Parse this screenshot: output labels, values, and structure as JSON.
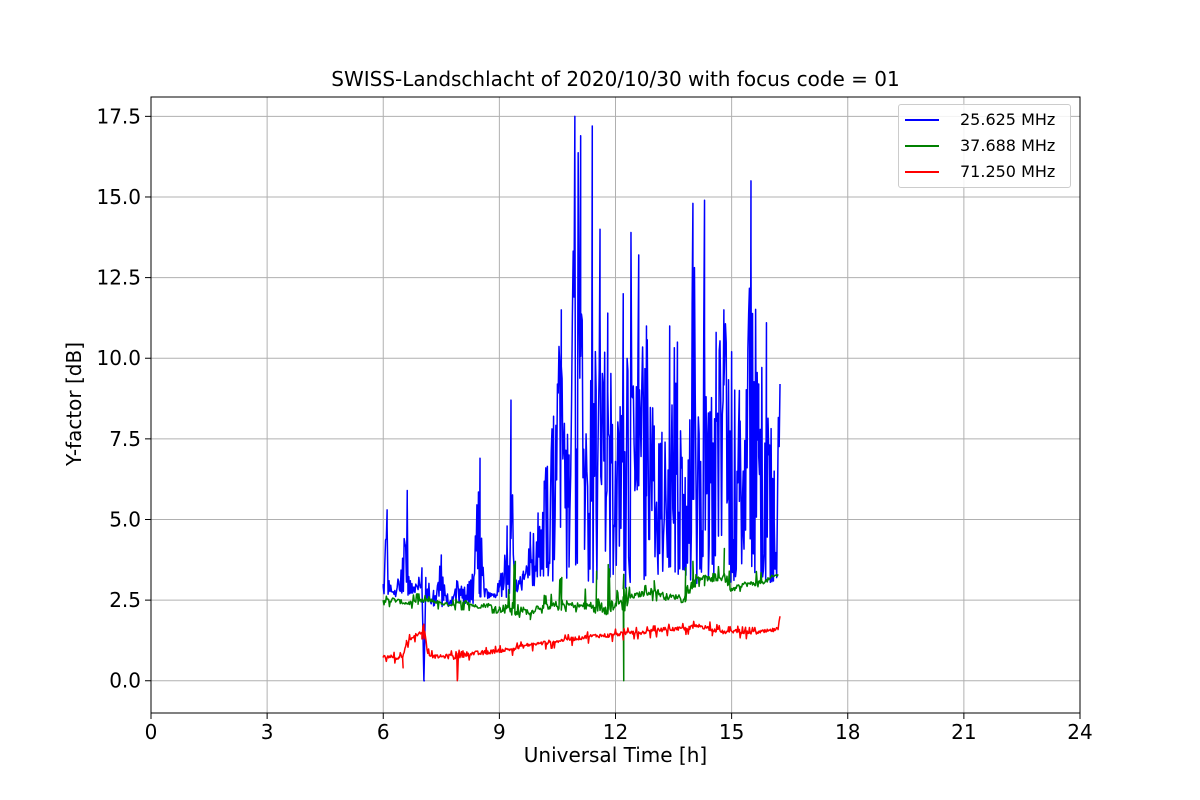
{
  "chart_data": {
    "type": "line",
    "title": "SWISS-Landschlacht of 2020/10/30 with focus code = 01",
    "xlabel": "Universal Time [h]",
    "ylabel": "Y-factor [dB]",
    "xlim": [
      0,
      24
    ],
    "ylim": [
      -1.0,
      18.1
    ],
    "xticks": [
      0,
      3,
      6,
      9,
      12,
      15,
      18,
      21,
      24
    ],
    "xtick_labels": [
      "0",
      "3",
      "6",
      "9",
      "12",
      "15",
      "18",
      "21",
      "24"
    ],
    "yticks": [
      0.0,
      2.5,
      5.0,
      7.5,
      10.0,
      12.5,
      15.0,
      17.5
    ],
    "ytick_labels": [
      "0.0",
      "2.5",
      "5.0",
      "7.5",
      "10.0",
      "12.5",
      "15.0",
      "17.5"
    ],
    "grid": true,
    "legend_position": "top-right",
    "series": [
      {
        "name": "25.625 MHz",
        "color": "#0000ff",
        "x": [
          6.0,
          6.1,
          6.15,
          6.3,
          6.5,
          6.62,
          6.7,
          6.8,
          7.0,
          7.05,
          7.1,
          7.3,
          7.5,
          7.7,
          7.9,
          8.1,
          8.3,
          8.5,
          8.6,
          8.8,
          9.0,
          9.2,
          9.3,
          9.4,
          9.6,
          9.8,
          10.0,
          10.2,
          10.4,
          10.6,
          10.8,
          10.95,
          11.1,
          11.2,
          11.4,
          11.5,
          11.6,
          11.8,
          12.0,
          12.2,
          12.4,
          12.5,
          12.6,
          12.8,
          13.0,
          13.2,
          13.4,
          13.6,
          13.8,
          14.0,
          14.2,
          14.3,
          14.4,
          14.6,
          14.8,
          15.0,
          15.2,
          15.3,
          15.5,
          15.7,
          15.9,
          16.1,
          16.25
        ],
        "y": [
          3.0,
          5.3,
          3.1,
          2.8,
          3.8,
          5.9,
          3.1,
          2.9,
          3.5,
          0.0,
          3.2,
          2.8,
          3.9,
          2.4,
          3.1,
          2.9,
          3.3,
          6.9,
          3.0,
          2.7,
          3.1,
          4.8,
          8.7,
          3.1,
          3.3,
          4.6,
          5.2,
          6.6,
          8.2,
          11.5,
          7.0,
          17.5,
          16.9,
          6.0,
          17.2,
          9.0,
          14.0,
          11.4,
          6.8,
          12.0,
          13.9,
          6.5,
          13.2,
          11.0,
          7.9,
          7.7,
          11.0,
          10.5,
          6.3,
          14.8,
          6.8,
          14.9,
          8.3,
          10.8,
          11.5,
          10.2,
          9.0,
          6.5,
          15.5,
          9.2,
          11.1,
          6.5,
          9.2
        ],
        "lower": [
          2.6,
          2.8,
          2.5,
          2.6,
          2.6,
          2.6,
          2.6,
          2.7,
          2.7,
          0.0,
          2.5,
          2.3,
          2.3,
          2.3,
          2.4,
          2.4,
          2.4,
          2.4,
          2.5,
          2.6,
          2.5,
          2.6,
          2.7,
          2.7,
          2.8,
          2.9,
          3.0,
          3.0,
          3.1,
          3.3,
          3.1,
          3.2,
          3.0,
          2.9,
          3.0,
          3.1,
          3.3,
          3.3,
          3.0,
          2.8,
          3.0,
          3.1,
          3.0,
          3.2,
          3.3,
          3.3,
          3.5,
          3.3,
          3.3,
          3.0,
          3.0,
          2.9,
          2.4,
          3.4,
          3.6,
          2.9,
          3.3,
          3.6,
          3.5,
          3.2,
          3.0,
          3.1,
          3.2
        ]
      },
      {
        "name": "37.688 MHz",
        "color": "#008000",
        "x": [
          6.0,
          6.3,
          6.6,
          6.9,
          7.2,
          7.5,
          7.8,
          8.1,
          8.4,
          8.7,
          9.0,
          9.2,
          9.4,
          9.6,
          9.8,
          10.0,
          10.3,
          10.6,
          10.9,
          11.2,
          11.5,
          11.8,
          12.1,
          12.2,
          12.4,
          12.7,
          13.0,
          13.3,
          13.6,
          13.8,
          14.0,
          14.3,
          14.6,
          14.8,
          15.0,
          15.3,
          15.6,
          15.9,
          16.2
        ],
        "y": [
          2.5,
          2.5,
          2.4,
          2.45,
          2.5,
          2.4,
          2.35,
          2.45,
          2.3,
          2.35,
          2.2,
          2.3,
          2.2,
          2.2,
          2.1,
          2.3,
          2.3,
          2.35,
          2.35,
          2.3,
          2.35,
          2.3,
          2.4,
          2.6,
          2.6,
          2.7,
          2.8,
          2.6,
          2.6,
          2.65,
          3.2,
          3.2,
          3.1,
          3.3,
          2.8,
          3.0,
          3.0,
          3.1,
          3.3
        ],
        "lower": [
          2.3,
          2.3,
          2.25,
          2.25,
          2.3,
          2.2,
          2.2,
          2.2,
          2.15,
          2.1,
          2.1,
          2.1,
          2.0,
          1.95,
          1.9,
          2.1,
          2.1,
          2.15,
          2.15,
          2.1,
          2.1,
          2.1,
          2.2,
          0.0,
          2.35,
          2.4,
          2.5,
          2.4,
          2.4,
          2.45,
          2.9,
          2.95,
          2.9,
          2.9,
          2.7,
          2.8,
          2.9,
          2.95,
          3.1
        ],
        "upper": [
          3.3,
          2.7,
          2.6,
          2.7,
          2.6,
          2.5,
          2.5,
          2.6,
          2.5,
          2.5,
          2.8,
          2.6,
          3.7,
          2.5,
          2.4,
          2.7,
          2.6,
          3.2,
          2.6,
          2.8,
          3.4,
          3.6,
          2.6,
          3.3,
          2.8,
          2.9,
          3.1,
          3.0,
          2.8,
          3.5,
          3.7,
          3.4,
          3.3,
          4.1,
          3.1,
          3.2,
          3.4,
          3.3,
          3.7
        ]
      },
      {
        "name": "71.250 MHz",
        "color": "#ff0000",
        "x": [
          6.0,
          6.2,
          6.4,
          6.5,
          6.6,
          6.8,
          7.0,
          7.05,
          7.15,
          7.3,
          7.6,
          7.9,
          8.2,
          8.5,
          8.8,
          9.1,
          9.4,
          9.7,
          10.0,
          10.3,
          10.6,
          10.9,
          11.2,
          11.5,
          11.8,
          12.1,
          12.4,
          12.7,
          13.0,
          13.3,
          13.6,
          13.9,
          14.2,
          14.5,
          14.8,
          15.1,
          15.4,
          15.7,
          16.0,
          16.2,
          16.25
        ],
        "y": [
          0.75,
          0.75,
          0.7,
          0.75,
          1.2,
          1.4,
          1.5,
          1.75,
          0.85,
          0.75,
          0.75,
          0.8,
          0.85,
          0.85,
          0.9,
          0.95,
          1.0,
          1.1,
          1.15,
          1.2,
          1.25,
          1.3,
          1.35,
          1.4,
          1.4,
          1.45,
          1.5,
          1.5,
          1.55,
          1.6,
          1.6,
          1.65,
          1.7,
          1.6,
          1.5,
          1.55,
          1.5,
          1.5,
          1.55,
          1.6,
          2.0
        ],
        "lower": [
          0.6,
          0.6,
          0.5,
          0.4,
          1.0,
          1.2,
          1.3,
          1.3,
          0.65,
          0.6,
          0.6,
          0.0,
          0.65,
          0.55,
          0.7,
          0.75,
          0.8,
          0.9,
          0.95,
          1.0,
          1.05,
          1.1,
          1.15,
          1.2,
          1.2,
          1.25,
          1.3,
          1.3,
          1.35,
          1.4,
          1.4,
          1.45,
          1.5,
          1.4,
          1.35,
          1.35,
          1.3,
          1.3,
          1.35,
          1.4,
          1.8
        ],
        "upper": [
          0.9,
          0.9,
          0.85,
          0.9,
          1.35,
          1.55,
          1.6,
          1.8,
          1.0,
          0.9,
          0.9,
          0.95,
          1.0,
          1.0,
          1.05,
          1.1,
          1.15,
          1.25,
          1.3,
          1.35,
          1.4,
          1.45,
          1.5,
          1.55,
          1.6,
          1.6,
          1.65,
          1.65,
          1.7,
          1.75,
          1.75,
          1.8,
          1.9,
          1.8,
          1.65,
          1.7,
          1.65,
          1.65,
          1.7,
          1.75,
          2.05
        ]
      }
    ]
  }
}
